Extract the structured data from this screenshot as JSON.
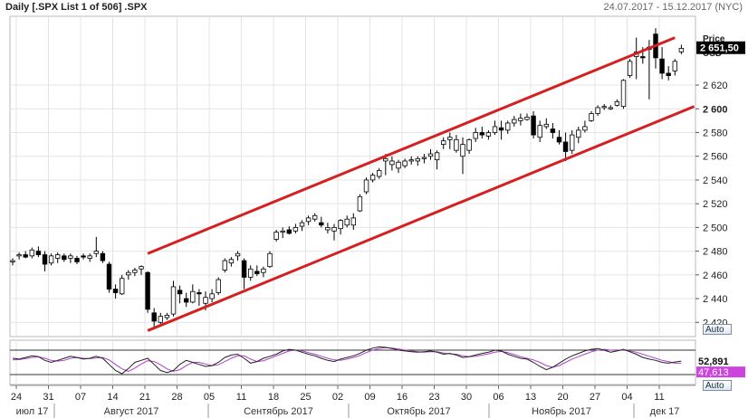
{
  "header": {
    "title": "Daily [.SPX List 1 of 506] .SPX",
    "date_range": "24.07.2017 - 15.12.2017 (NYC)"
  },
  "price_panel": {
    "axis_caption_line1": "Price",
    "axis_caption_line2": "USD",
    "last_price_label": "2 651,50",
    "auto_button": "Auto"
  },
  "indicator_panel": {
    "value_1": "52,891",
    "value_2": "47,613",
    "auto_button": "Auto",
    "upper_level": 80,
    "lower_level": 20,
    "series_1_color": "#222222",
    "series_2_color": "#b040c8",
    "value_2_bg": "#cc44dd"
  },
  "x_axis": {
    "day_ticks": [
      "24",
      "31",
      "07",
      "14",
      "21",
      "28",
      "05",
      "11",
      "18",
      "25",
      "02",
      "09",
      "16",
      "23",
      "30",
      "06",
      "13",
      "20",
      "27",
      "04",
      "11"
    ],
    "months": [
      "июл 17",
      "Август 2017",
      "Сентябрь 2017",
      "Октябрь 2017",
      "Ноябрь 2017",
      "дек 17"
    ]
  },
  "colors": {
    "channel_line": "#d42020",
    "candle_outline": "#000000",
    "grid": "#e4e4e4",
    "last_price_bg": "#000000"
  },
  "chart_data": {
    "type": "candlestick",
    "y_axis": {
      "ticks": [
        2420,
        2440,
        2460,
        2480,
        2500,
        2520,
        2540,
        2560,
        2580,
        2600,
        2620
      ],
      "bold_tick": 2600,
      "range": [
        2408,
        2678
      ]
    },
    "candles": [
      [
        2471,
        2474,
        2468,
        2472
      ],
      [
        2476,
        2479,
        2473,
        2477
      ],
      [
        2477,
        2480,
        2474,
        2475
      ],
      [
        2476,
        2483,
        2474,
        2481
      ],
      [
        2480,
        2484,
        2475,
        2477
      ],
      [
        2477,
        2480,
        2463,
        2469
      ],
      [
        2470,
        2478,
        2468,
        2476
      ],
      [
        2474,
        2479,
        2470,
        2477
      ],
      [
        2476,
        2478,
        2471,
        2473
      ],
      [
        2474,
        2478,
        2470,
        2476
      ],
      [
        2474,
        2476,
        2469,
        2471
      ],
      [
        2476,
        2478,
        2473,
        2475
      ],
      [
        2474,
        2478,
        2471,
        2476
      ],
      [
        2478,
        2492,
        2475,
        2480
      ],
      [
        2478,
        2480,
        2470,
        2472
      ],
      [
        2469,
        2471,
        2445,
        2448
      ],
      [
        2448,
        2452,
        2440,
        2445
      ],
      [
        2444,
        2460,
        2443,
        2457
      ],
      [
        2460,
        2464,
        2456,
        2462
      ],
      [
        2462,
        2466,
        2459,
        2464
      ],
      [
        2465,
        2468,
        2460,
        2467
      ],
      [
        2462,
        2463,
        2428,
        2431
      ],
      [
        2428,
        2432,
        2414,
        2421
      ],
      [
        2420,
        2428,
        2417,
        2425
      ],
      [
        2424,
        2428,
        2422,
        2426
      ],
      [
        2427,
        2455,
        2425,
        2450
      ],
      [
        2447,
        2451,
        2436,
        2444
      ],
      [
        2440,
        2445,
        2433,
        2437
      ],
      [
        2437,
        2452,
        2436,
        2446
      ],
      [
        2445,
        2448,
        2434,
        2444
      ],
      [
        2436,
        2446,
        2430,
        2441
      ],
      [
        2440,
        2448,
        2437,
        2444
      ],
      [
        2445,
        2458,
        2443,
        2456
      ],
      [
        2464,
        2474,
        2462,
        2472
      ],
      [
        2470,
        2475,
        2467,
        2473
      ],
      [
        2476,
        2480,
        2472,
        2478
      ],
      [
        2472,
        2474,
        2448,
        2458
      ],
      [
        2458,
        2468,
        2455,
        2465
      ],
      [
        2463,
        2468,
        2459,
        2461
      ],
      [
        2462,
        2467,
        2458,
        2465
      ],
      [
        2467,
        2480,
        2466,
        2478
      ],
      [
        2490,
        2498,
        2488,
        2496
      ],
      [
        2496,
        2500,
        2491,
        2497
      ],
      [
        2498,
        2501,
        2494,
        2495
      ],
      [
        2497,
        2503,
        2495,
        2500
      ],
      [
        2501,
        2506,
        2497,
        2504
      ],
      [
        2505,
        2510,
        2502,
        2508
      ],
      [
        2507,
        2512,
        2505,
        2510
      ],
      [
        2504,
        2509,
        2500,
        2502
      ],
      [
        2498,
        2504,
        2495,
        2500
      ],
      [
        2497,
        2503,
        2489,
        2500
      ],
      [
        2499,
        2507,
        2494,
        2506
      ],
      [
        2502,
        2510,
        2500,
        2507
      ],
      [
        2502,
        2512,
        2498,
        2508
      ],
      [
        2514,
        2528,
        2513,
        2526
      ],
      [
        2530,
        2542,
        2528,
        2540
      ],
      [
        2540,
        2546,
        2538,
        2544
      ],
      [
        2543,
        2550,
        2541,
        2548
      ],
      [
        2556,
        2562,
        2544,
        2558
      ],
      [
        2553,
        2560,
        2548,
        2556
      ],
      [
        2550,
        2557,
        2546,
        2555
      ],
      [
        2552,
        2558,
        2550,
        2556
      ],
      [
        2556,
        2560,
        2553,
        2557
      ],
      [
        2556,
        2560,
        2552,
        2558
      ],
      [
        2558,
        2562,
        2554,
        2559
      ],
      [
        2560,
        2566,
        2557,
        2562
      ],
      [
        2557,
        2565,
        2549,
        2563
      ],
      [
        2570,
        2576,
        2566,
        2573
      ],
      [
        2574,
        2580,
        2566,
        2576
      ],
      [
        2565,
        2578,
        2563,
        2574
      ],
      [
        2560,
        2576,
        2545,
        2570
      ],
      [
        2565,
        2575,
        2562,
        2574
      ],
      [
        2575,
        2584,
        2572,
        2580
      ],
      [
        2580,
        2585,
        2575,
        2578
      ],
      [
        2577,
        2582,
        2574,
        2580
      ],
      [
        2580,
        2590,
        2578,
        2585
      ],
      [
        2584,
        2590,
        2574,
        2582
      ],
      [
        2582,
        2590,
        2579,
        2588
      ],
      [
        2588,
        2594,
        2585,
        2591
      ],
      [
        2590,
        2596,
        2586,
        2592
      ],
      [
        2591,
        2596,
        2590,
        2593
      ],
      [
        2594,
        2598,
        2575,
        2578
      ],
      [
        2576,
        2590,
        2572,
        2586
      ],
      [
        2585,
        2592,
        2583,
        2587
      ],
      [
        2583,
        2588,
        2575,
        2580
      ],
      [
        2576,
        2582,
        2570,
        2572
      ],
      [
        2572,
        2580,
        2556,
        2564
      ],
      [
        2565,
        2582,
        2562,
        2578
      ],
      [
        2576,
        2585,
        2571,
        2582
      ],
      [
        2582,
        2590,
        2580,
        2585
      ],
      [
        2590,
        2598,
        2589,
        2596
      ],
      [
        2596,
        2603,
        2594,
        2601
      ],
      [
        2601,
        2604,
        2599,
        2602
      ],
      [
        2600,
        2603,
        2599,
        2601
      ],
      [
        2603,
        2608,
        2602,
        2606
      ],
      [
        2602,
        2625,
        2600,
        2624
      ],
      [
        2628,
        2642,
        2626,
        2640
      ],
      [
        2644,
        2660,
        2625,
        2648
      ],
      [
        2644,
        2652,
        2638,
        2643
      ],
      [
        2650,
        2658,
        2608,
        2652
      ],
      [
        2663,
        2668,
        2634,
        2643
      ],
      [
        2642,
        2652,
        2625,
        2630
      ],
      [
        2630,
        2636,
        2624,
        2628
      ],
      [
        2632,
        2642,
        2628,
        2640
      ],
      [
        2648,
        2654,
        2646,
        2651
      ]
    ],
    "channel": {
      "upper": [
        [
          21,
          2478
        ],
        [
          103,
          2660
        ]
      ],
      "lower": [
        [
          21,
          2413
        ],
        [
          106,
          2602
        ]
      ]
    },
    "oscillator": {
      "range": [
        0,
        100
      ],
      "levels": [
        80,
        20
      ],
      "series_1": [
        60,
        58,
        62,
        66,
        64,
        55,
        50,
        55,
        60,
        65,
        62,
        58,
        60,
        65,
        60,
        45,
        30,
        22,
        35,
        50,
        55,
        60,
        45,
        30,
        25,
        30,
        45,
        55,
        50,
        45,
        40,
        42,
        50,
        62,
        68,
        70,
        60,
        48,
        52,
        60,
        65,
        70,
        78,
        82,
        80,
        75,
        70,
        66,
        60,
        55,
        52,
        58,
        62,
        66,
        72,
        80,
        85,
        88,
        87,
        84,
        80,
        78,
        76,
        75,
        76,
        78,
        75,
        70,
        72,
        68,
        62,
        64,
        68,
        72,
        75,
        80,
        78,
        70,
        65,
        60,
        58,
        50,
        40,
        32,
        38,
        48,
        58,
        66,
        72,
        78,
        82,
        84,
        80,
        75,
        78,
        82,
        76,
        70,
        62,
        58,
        55,
        50,
        48,
        51,
        53
      ],
      "series_2": [
        56,
        57,
        59,
        62,
        64,
        60,
        55,
        53,
        55,
        60,
        62,
        60,
        59,
        61,
        62,
        56,
        45,
        34,
        28,
        36,
        46,
        54,
        52,
        44,
        34,
        28,
        32,
        42,
        50,
        50,
        46,
        42,
        44,
        52,
        60,
        66,
        66,
        58,
        52,
        54,
        60,
        66,
        72,
        78,
        80,
        78,
        74,
        70,
        65,
        60,
        56,
        55,
        58,
        62,
        67,
        74,
        80,
        84,
        86,
        85,
        83,
        80,
        78,
        76,
        75,
        76,
        76,
        73,
        71,
        70,
        66,
        64,
        65,
        68,
        71,
        75,
        77,
        74,
        69,
        64,
        60,
        56,
        50,
        42,
        38,
        42,
        50,
        58,
        64,
        70,
        76,
        80,
        82,
        80,
        79,
        80,
        78,
        75,
        70,
        65,
        60,
        55,
        52,
        48,
        48
      ]
    },
    "last_price": 2651.5
  }
}
